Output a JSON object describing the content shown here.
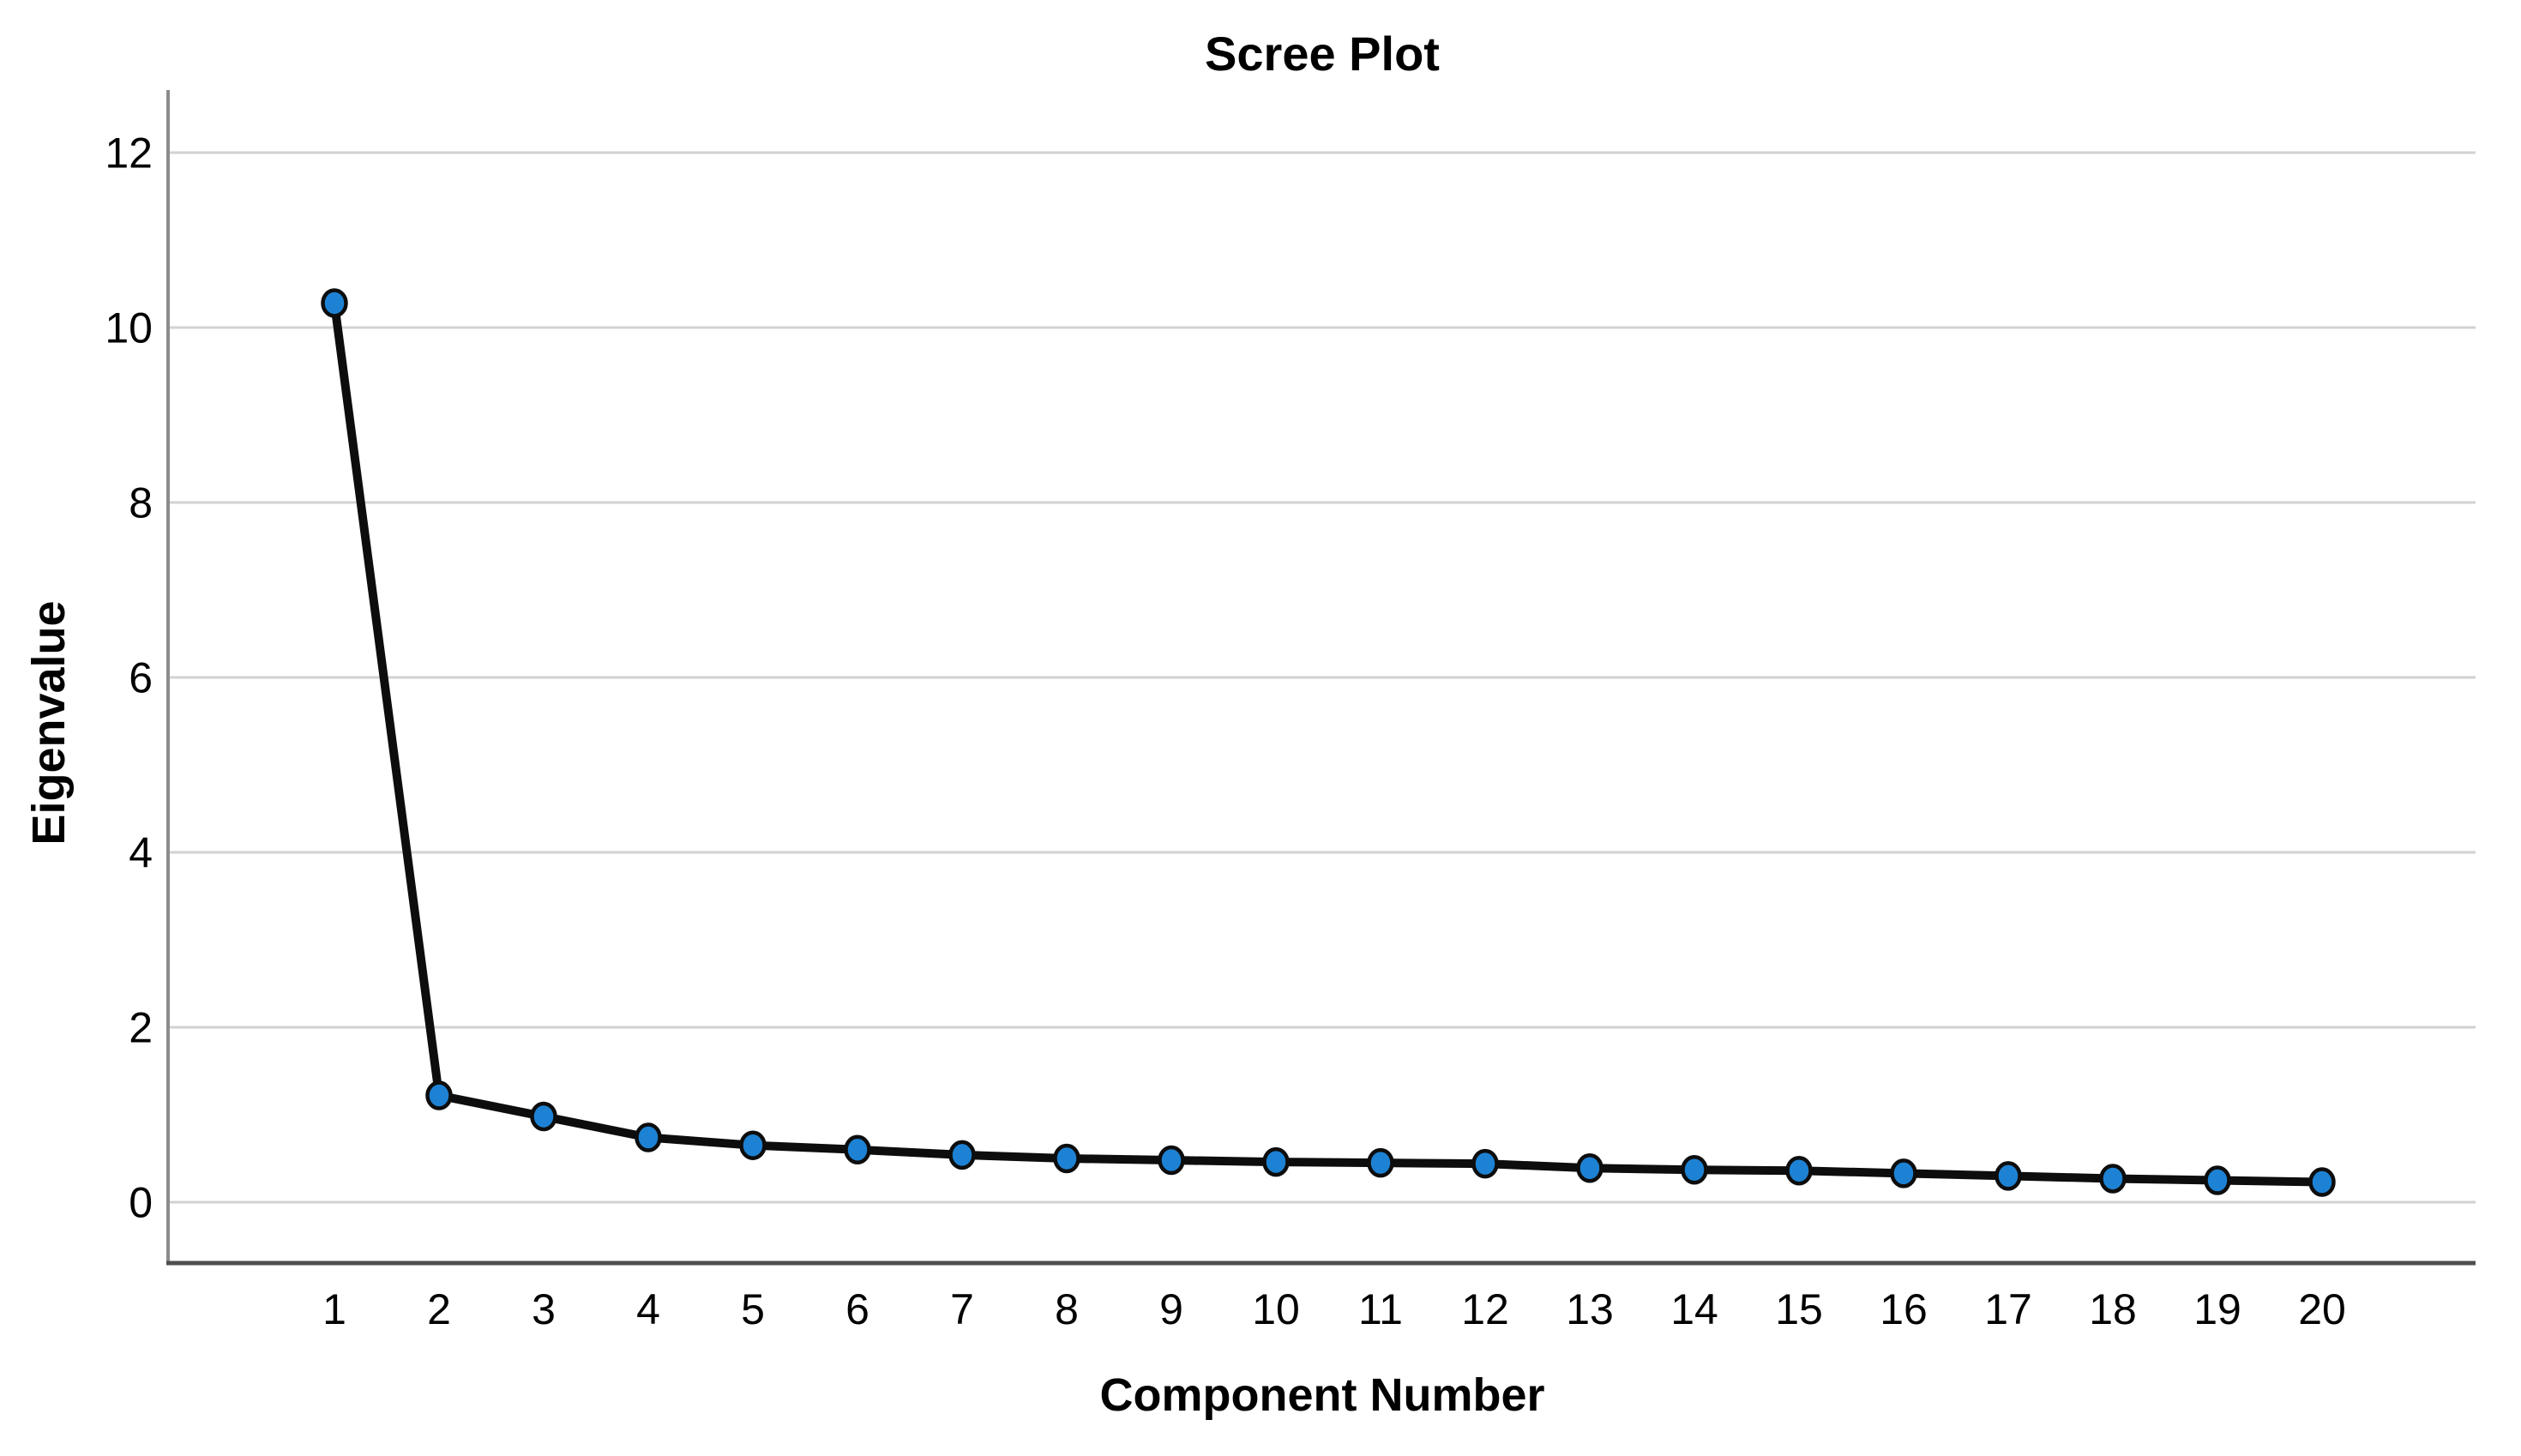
{
  "title": "Scree Plot",
  "chart_data": {
    "type": "line",
    "title": "Scree Plot",
    "xlabel": "Component Number",
    "ylabel": "Eigenvalue",
    "x": [
      1,
      2,
      3,
      4,
      5,
      6,
      7,
      8,
      9,
      10,
      11,
      12,
      13,
      14,
      15,
      16,
      17,
      18,
      19,
      20
    ],
    "series": [
      {
        "name": "Eigenvalue",
        "values": [
          10.28,
          1.22,
          0.98,
          0.74,
          0.65,
          0.6,
          0.54,
          0.5,
          0.48,
          0.46,
          0.45,
          0.44,
          0.39,
          0.37,
          0.36,
          0.33,
          0.3,
          0.27,
          0.25,
          0.23
        ]
      }
    ],
    "yticks": [
      0,
      2,
      4,
      6,
      8,
      10,
      12
    ],
    "ylim": [
      -0.7,
      12.75
    ],
    "grid": "horizontal-only",
    "legend": "none",
    "colors": {
      "marker_fill": "#1d82d3",
      "marker_stroke": "#0d0d0d",
      "line": "#0d0d0d",
      "gridline": "#d2d2d2",
      "y_axis_line": "#8c8c8c",
      "x_axis_line": "#4f4f4f",
      "text": "#000000"
    }
  }
}
